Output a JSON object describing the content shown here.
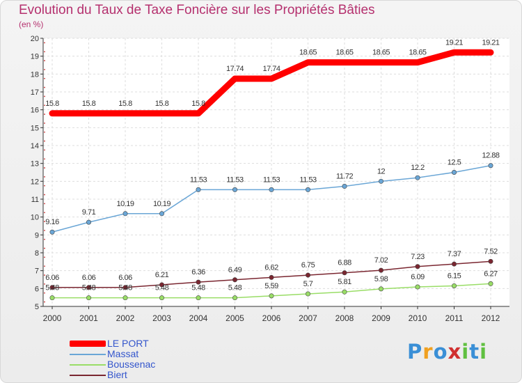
{
  "chart_data": {
    "type": "line",
    "title": "Evolution du Taux de Taxe Foncière sur les Propriétés Bâties",
    "subtitle": "(en %)",
    "x": [
      "2000",
      "2001",
      "2002",
      "2003",
      "2004",
      "2005",
      "2006",
      "2007",
      "2008",
      "2009",
      "2010",
      "2011",
      "2012"
    ],
    "ylim": [
      5,
      20
    ],
    "yticks": [
      "5",
      "6",
      "7",
      "8",
      "9",
      "10",
      "11",
      "12",
      "13",
      "14",
      "15",
      "16",
      "17",
      "18",
      "19",
      "20"
    ],
    "grid": true,
    "legend_position": "bottom-left",
    "series": [
      {
        "name": "LE PORT",
        "color": "#ff0000",
        "values": [
          15.8,
          15.8,
          15.8,
          15.8,
          15.8,
          17.74,
          17.74,
          18.65,
          18.65,
          18.65,
          18.65,
          19.21,
          19.21
        ],
        "labels": [
          "15.8",
          "15.8",
          "15.8",
          "15.8",
          "15.8",
          "17.74",
          "17.74",
          "18.65",
          "18.65",
          "18.65",
          "18.65",
          "19.21",
          "19.21"
        ]
      },
      {
        "name": "Massat",
        "color": "#6aa6d6",
        "values": [
          9.16,
          9.71,
          10.19,
          10.19,
          11.53,
          11.53,
          11.53,
          11.53,
          11.72,
          12,
          12.2,
          12.5,
          12.88
        ],
        "labels": [
          "9.16",
          "9.71",
          "10.19",
          "10.19",
          "11.53",
          "11.53",
          "11.53",
          "11.53",
          "11.72",
          "12",
          "12.2",
          "12.5",
          "12.88"
        ]
      },
      {
        "name": "Boussenac",
        "color": "#99dd66",
        "values": [
          5.48,
          5.48,
          5.48,
          5.48,
          5.48,
          5.48,
          5.59,
          5.7,
          5.81,
          5.98,
          6.09,
          6.15,
          6.27
        ],
        "labels": [
          "5.48",
          "5.48",
          "5.48",
          "5.48",
          "5.48",
          "5.48",
          "5.59",
          "5.7",
          "5.81",
          "5.98",
          "6.09",
          "6.15",
          "6.27"
        ]
      },
      {
        "name": "Biert",
        "color": "#7a2630",
        "values": [
          6.06,
          6.06,
          6.06,
          6.21,
          6.36,
          6.49,
          6.62,
          6.75,
          6.88,
          7.02,
          7.23,
          7.37,
          7.52
        ],
        "labels": [
          "6.06",
          "6.06",
          "6.06",
          "6.21",
          "6.36",
          "6.49",
          "6.62",
          "6.75",
          "6.88",
          "7.02",
          "7.23",
          "7.37",
          "7.52"
        ]
      }
    ]
  },
  "logo": {
    "letters": [
      "P",
      "r",
      "o",
      "x",
      "i",
      "t",
      "i"
    ],
    "colors": [
      "#3a8fd6",
      "#f0a020",
      "#3a8fd6",
      "#d03030",
      "#60c040",
      "#3a8fd6",
      "#60c040"
    ]
  }
}
